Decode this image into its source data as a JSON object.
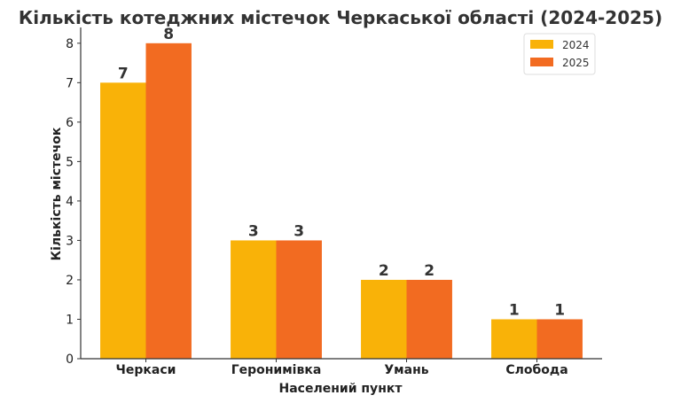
{
  "chart_data": {
    "type": "bar",
    "title": "Кількість котеджних містечок Черкаської області (2024-2025)",
    "xlabel": "Населений пункт",
    "ylabel": "Кількість містечок",
    "categories": [
      "Черкаси",
      "Геронимівка",
      "Умань",
      "Слобода"
    ],
    "series": [
      {
        "name": "2024",
        "values": [
          7,
          3,
          2,
          1
        ],
        "color": "#F9B208"
      },
      {
        "name": "2025",
        "values": [
          8,
          3,
          2,
          1
        ],
        "color": "#F26B21"
      }
    ],
    "ylim": [
      0,
      8.4
    ],
    "yticks": [
      0,
      1,
      2,
      3,
      4,
      5,
      6,
      7,
      8
    ],
    "grid": false,
    "legend_position": "top-right",
    "data_labels": true
  }
}
